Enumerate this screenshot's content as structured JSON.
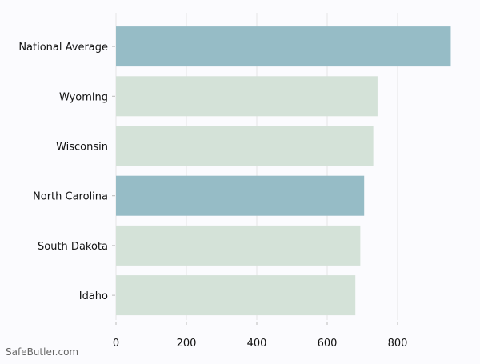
{
  "chart_data": {
    "type": "bar",
    "orientation": "horizontal",
    "categories": [
      "National Average",
      "Wyoming",
      "Wisconsin",
      "North Carolina",
      "South Dakota",
      "Idaho"
    ],
    "values": [
      951,
      743,
      731,
      705,
      694,
      680
    ],
    "bar_colors": [
      "#96bcc6",
      "#d4e2d8",
      "#d4e2d8",
      "#96bcc6",
      "#d4e2d8",
      "#d4e2d8"
    ],
    "xlim": [
      0,
      1000
    ],
    "xticks": [
      0,
      200,
      400,
      600,
      800
    ],
    "title": "",
    "xlabel": "",
    "ylabel": "",
    "grid": "vertical",
    "legend": "none"
  },
  "watermark": "SafeButler.com",
  "colors": {
    "background": "#fbfbfe",
    "grid": "#e6e6e6",
    "axis": "#bbbbbb",
    "highlight_bar": "#96bcc6",
    "regular_bar": "#d4e2d8"
  }
}
